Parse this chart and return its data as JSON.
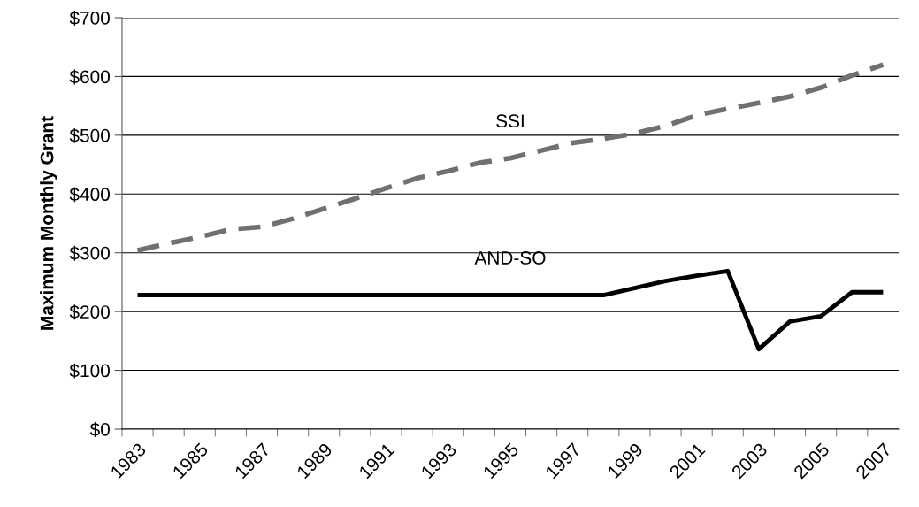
{
  "chart_data": {
    "type": "line",
    "ylabel": "Maximum Monthly Grant",
    "categories": [
      "1983",
      null,
      "1985",
      null,
      "1987",
      null,
      "1989",
      null,
      "1991",
      null,
      "1993",
      null,
      "1995",
      null,
      "1997",
      null,
      "1999",
      null,
      "2001",
      null,
      "2003",
      null,
      "2005",
      null,
      "2007"
    ],
    "series": [
      {
        "name": "SSI",
        "color": "#707070",
        "line_style": "dashed",
        "values": [
          304,
          316,
          327,
          340,
          344,
          358,
          375,
          392,
          410,
          427,
          439,
          453,
          461,
          474,
          487,
          494,
          503,
          516,
          534,
          545,
          555,
          566,
          581,
          602,
          620
        ]
      },
      {
        "name": "AND-SO",
        "color": "#000000",
        "line_style": "solid",
        "values": [
          228,
          228,
          228,
          228,
          228,
          228,
          228,
          228,
          228,
          228,
          228,
          228,
          228,
          228,
          228,
          228,
          240,
          252,
          261,
          269,
          136,
          183,
          192,
          233,
          233
        ]
      }
    ],
    "ylim": [
      0,
      700
    ],
    "yticks": [
      {
        "value": 0,
        "label": "$0"
      },
      {
        "value": 100,
        "label": "$100"
      },
      {
        "value": 200,
        "label": "$200"
      },
      {
        "value": 300,
        "label": "$300"
      },
      {
        "value": 400,
        "label": "$400"
      },
      {
        "value": 500,
        "label": "$500"
      },
      {
        "value": 600,
        "label": "$600"
      },
      {
        "value": 700,
        "label": "$700"
      }
    ],
    "grid": "y",
    "legend": false,
    "marker": "none"
  }
}
